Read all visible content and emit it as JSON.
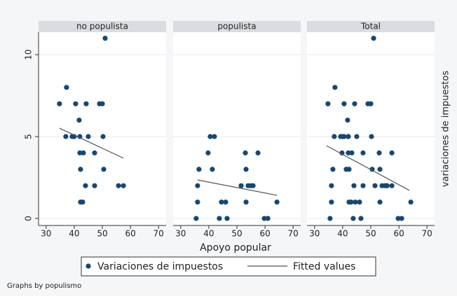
{
  "chart_data": {
    "type": "scatter",
    "xlabel": "Apoyo popular",
    "ylabel": "variaciones de impuestos",
    "note": "Graphs by populismo",
    "xlim": [
      27.3,
      72.7
    ],
    "xticks": [
      30,
      40,
      50,
      60,
      70
    ],
    "ylim": [
      -0.43,
      11.37
    ],
    "yticks": [
      0,
      5,
      10
    ],
    "grid": true,
    "series": [
      {
        "name": "Variaciones de impuestos",
        "color": "#1a476f"
      },
      {
        "name": "Fitted values",
        "color": "#555555"
      }
    ],
    "panels": [
      {
        "title": "no populista",
        "scatter": {
          "x": [
            34.75,
            37.25,
            37,
            39.25,
            40,
            40.5,
            41.75,
            42,
            42,
            42.25,
            42.25,
            43,
            43.25,
            44,
            44.25,
            45,
            47.25,
            47.25,
            49,
            50,
            50.25,
            50.5,
            51,
            55.75,
            57.5
          ],
          "values": [
            7,
            8,
            5,
            5,
            5,
            7,
            6,
            5,
            4,
            3,
            1,
            1,
            4,
            2,
            7,
            5,
            4,
            2,
            7,
            7,
            5,
            3,
            11,
            2,
            2
          ]
        },
        "fit": {
          "x": [
            34.75,
            57.5
          ],
          "values": [
            5.51,
            3.68
          ]
        }
      },
      {
        "title": "populista",
        "scatter": {
          "x": [
            35.5,
            36,
            36,
            36.5,
            39.75,
            40.5,
            42,
            41.25,
            44.5,
            43.75,
            46,
            46.5,
            51.5,
            53,
            53.25,
            54,
            55,
            53.25,
            55.75,
            57.5,
            59.75,
            61,
            64.25
          ],
          "values": [
            0,
            1,
            2,
            3,
            4,
            5,
            5,
            3,
            1,
            0,
            1,
            0,
            2,
            4,
            3,
            2,
            2,
            1,
            2,
            4,
            0,
            0,
            1
          ]
        },
        "fit": {
          "x": [
            36,
            64.25
          ],
          "values": [
            2.35,
            1.41
          ]
        }
      },
      {
        "title": "Total",
        "scatter": {
          "x": [
            34.75,
            37.25,
            37,
            39.25,
            40,
            40.5,
            41.75,
            42,
            42,
            42.25,
            42.25,
            43,
            43.25,
            44,
            44.25,
            45,
            47.25,
            47.25,
            49,
            50,
            50.25,
            50.5,
            51,
            55.75,
            57.5,
            35.5,
            36,
            36,
            36.5,
            39.75,
            40.5,
            42,
            41.25,
            44.5,
            43.75,
            46,
            46.5,
            51.5,
            53,
            53.25,
            54,
            55,
            53.25,
            55.75,
            57.5,
            59.75,
            61,
            64.25
          ],
          "values": [
            7,
            8,
            5,
            5,
            5,
            7,
            6,
            5,
            4,
            3,
            1,
            1,
            4,
            2,
            7,
            5,
            4,
            2,
            7,
            7,
            5,
            3,
            11,
            2,
            2,
            0,
            1,
            2,
            3,
            4,
            5,
            5,
            3,
            1,
            0,
            1,
            0,
            2,
            4,
            3,
            2,
            2,
            1,
            2,
            4,
            0,
            0,
            1
          ]
        },
        "fit": {
          "x": [
            34.25,
            63.75
          ],
          "values": [
            4.44,
            1.71
          ]
        }
      }
    ]
  }
}
